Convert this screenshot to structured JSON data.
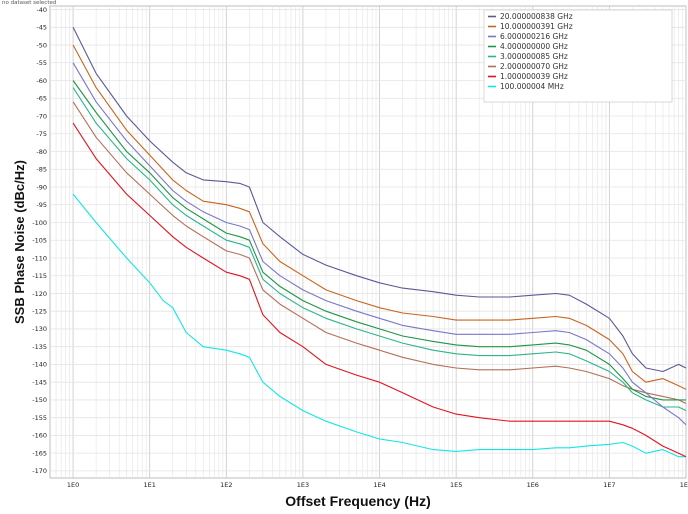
{
  "status_text": "no dataset selected",
  "colors": {
    "grid_major": "#c8c8c8",
    "grid_minor": "#e4e4e4",
    "frame": "#bcbcbc"
  },
  "chart_data": {
    "type": "line",
    "xlabel": "Offset Frequency (Hz)",
    "ylabel": "SSB Phase Noise (dBc/Hz)",
    "x_scale": "log",
    "xlim": [
      0.5,
      100000000
    ],
    "ylim": [
      -172,
      -39
    ],
    "x_ticks": [
      {
        "value": 1,
        "label": "1E0"
      },
      {
        "value": 10,
        "label": "1E1"
      },
      {
        "value": 100,
        "label": "1E2"
      },
      {
        "value": 1000,
        "label": "1E3"
      },
      {
        "value": 10000,
        "label": "1E4"
      },
      {
        "value": 100000,
        "label": "1E5"
      },
      {
        "value": 1000000,
        "label": "1E6"
      },
      {
        "value": 10000000,
        "label": "1E7"
      },
      {
        "value": 100000000,
        "label": "1E8"
      }
    ],
    "y_ticks": [
      -40,
      -45,
      -50,
      -55,
      -60,
      -65,
      -70,
      -75,
      -80,
      -85,
      -90,
      -95,
      -100,
      -105,
      -110,
      -115,
      -120,
      -125,
      -130,
      -135,
      -140,
      -145,
      -150,
      -155,
      -160,
      -165,
      -170
    ],
    "grid": true,
    "legend_position": "top-right",
    "series": [
      {
        "name": "20.000000838 GHz",
        "color": "#5a5a96",
        "x": [
          1,
          2,
          5,
          10,
          20,
          30,
          50,
          100,
          150,
          200,
          300,
          500,
          1000,
          2000,
          5000,
          10000,
          20000,
          50000,
          100000,
          200000,
          500000,
          1000000,
          2000000,
          3000000,
          5000000,
          10000000,
          15000000,
          20000000,
          30000000,
          50000000,
          80000000,
          100000000
        ],
        "y": [
          -45,
          -58,
          -70,
          -77,
          -83,
          -86,
          -88,
          -88.5,
          -89,
          -90,
          -100,
          -104,
          -109,
          -112,
          -115,
          -117,
          -118.5,
          -119.5,
          -120.5,
          -121,
          -121,
          -120.5,
          -120,
          -120.5,
          -123,
          -127,
          -132,
          -137,
          -141,
          -142,
          -140,
          -141
        ]
      },
      {
        "name": "10.000000391 GHz",
        "color": "#c8641e",
        "x": [
          1,
          2,
          5,
          10,
          20,
          30,
          50,
          100,
          150,
          200,
          300,
          500,
          1000,
          2000,
          5000,
          10000,
          20000,
          50000,
          100000,
          200000,
          500000,
          1000000,
          2000000,
          3000000,
          5000000,
          10000000,
          15000000,
          20000000,
          30000000,
          50000000,
          80000000,
          100000000
        ],
        "y": [
          -50,
          -62,
          -74,
          -81,
          -88,
          -91,
          -94,
          -95,
          -96,
          -97,
          -106,
          -111,
          -115,
          -119,
          -122,
          -124,
          -125.5,
          -126.5,
          -127.5,
          -127.5,
          -127.5,
          -127,
          -126.5,
          -127,
          -129,
          -133,
          -137,
          -142,
          -145,
          -144,
          -146,
          -147
        ]
      },
      {
        "name": "6.000000216 GHz",
        "color": "#7878c8",
        "x": [
          1,
          2,
          5,
          10,
          20,
          30,
          50,
          100,
          150,
          200,
          300,
          500,
          1000,
          2000,
          5000,
          10000,
          20000,
          50000,
          100000,
          200000,
          500000,
          1000000,
          2000000,
          3000000,
          5000000,
          10000000,
          15000000,
          20000000,
          30000000,
          50000000,
          80000000,
          100000000
        ],
        "y": [
          -55,
          -66,
          -77,
          -84,
          -91,
          -94,
          -97,
          -100,
          -101,
          -102,
          -111,
          -115,
          -119,
          -122,
          -125,
          -127,
          -129,
          -130.5,
          -131.5,
          -131.5,
          -131.5,
          -131,
          -130.5,
          -131,
          -133,
          -137,
          -141,
          -145,
          -148,
          -152,
          -155,
          -157
        ]
      },
      {
        "name": "4.000000000 GHz",
        "color": "#1e9646",
        "x": [
          1,
          2,
          5,
          10,
          20,
          30,
          50,
          100,
          150,
          200,
          300,
          500,
          1000,
          2000,
          5000,
          10000,
          20000,
          50000,
          100000,
          200000,
          500000,
          1000000,
          2000000,
          3000000,
          5000000,
          10000000,
          15000000,
          20000000,
          30000000,
          50000000,
          80000000,
          100000000
        ],
        "y": [
          -60,
          -69,
          -80,
          -86,
          -93,
          -96,
          -99,
          -103,
          -104,
          -105,
          -114,
          -118,
          -122,
          -125,
          -128,
          -130,
          -132,
          -133.5,
          -134.5,
          -135,
          -135,
          -134.5,
          -134,
          -134.5,
          -136,
          -140,
          -144,
          -147,
          -149,
          -150,
          -150,
          -150
        ]
      },
      {
        "name": "3.000000085 GHz",
        "color": "#2db48c",
        "x": [
          1,
          2,
          5,
          10,
          20,
          30,
          50,
          100,
          150,
          200,
          300,
          500,
          1000,
          2000,
          5000,
          10000,
          20000,
          50000,
          100000,
          200000,
          500000,
          1000000,
          2000000,
          3000000,
          5000000,
          10000000,
          15000000,
          20000000,
          30000000,
          50000000,
          80000000,
          100000000
        ],
        "y": [
          -62,
          -72,
          -82,
          -88,
          -95,
          -98,
          -101,
          -105,
          -106,
          -107,
          -116,
          -120,
          -124,
          -127,
          -130,
          -132,
          -134,
          -136,
          -137,
          -137.5,
          -137.5,
          -137,
          -136.5,
          -137,
          -139,
          -142,
          -145,
          -148,
          -150,
          -152,
          -152,
          -153
        ]
      },
      {
        "name": "2.000000070 GHz",
        "color": "#b46e5a",
        "x": [
          1,
          2,
          5,
          10,
          20,
          30,
          50,
          100,
          150,
          200,
          300,
          500,
          1000,
          2000,
          5000,
          10000,
          20000,
          50000,
          100000,
          200000,
          500000,
          1000000,
          2000000,
          3000000,
          5000000,
          10000000,
          15000000,
          20000000,
          30000000,
          50000000,
          80000000,
          100000000
        ],
        "y": [
          -66,
          -76,
          -86,
          -92,
          -98,
          -101,
          -104,
          -108,
          -109,
          -110,
          -119,
          -123,
          -127,
          -131,
          -134,
          -136,
          -138,
          -140,
          -141,
          -141.5,
          -141.5,
          -141,
          -140.5,
          -141,
          -142,
          -144,
          -146,
          -147,
          -148,
          -149,
          -150,
          -151
        ]
      },
      {
        "name": "1.000000039 GHz",
        "color": "#e1141e",
        "x": [
          1,
          2,
          5,
          10,
          20,
          30,
          50,
          100,
          150,
          200,
          300,
          500,
          1000,
          2000,
          5000,
          10000,
          20000,
          50000,
          100000,
          200000,
          500000,
          1000000,
          2000000,
          3000000,
          5000000,
          10000000,
          15000000,
          20000000,
          30000000,
          50000000,
          80000000,
          100000000
        ],
        "y": [
          -72,
          -82,
          -92,
          -98,
          -104,
          -107,
          -110,
          -114,
          -115,
          -116,
          -126,
          -131,
          -135,
          -140,
          -143,
          -145,
          -148,
          -152,
          -154,
          -155,
          -156,
          -156,
          -156,
          -156,
          -156,
          -156,
          -157,
          -158,
          -160,
          -163,
          -165,
          -166
        ]
      },
      {
        "name": "100.000004 MHz",
        "color": "#14e6e6",
        "x": [
          1,
          2,
          5,
          10,
          15,
          20,
          30,
          50,
          100,
          150,
          200,
          300,
          500,
          1000,
          2000,
          5000,
          10000,
          20000,
          50000,
          100000,
          200000,
          500000,
          1000000,
          2000000,
          3000000,
          5000000,
          10000000,
          15000000,
          20000000,
          30000000,
          50000000,
          80000000,
          100000000
        ],
        "y": [
          -92,
          -100,
          -110,
          -117,
          -122,
          -124,
          -131,
          -135,
          -136,
          -137,
          -138,
          -145,
          -149,
          -153,
          -156,
          -159,
          -161,
          -162,
          -164,
          -164.5,
          -164,
          -164,
          -164,
          -163.5,
          -163.5,
          -163,
          -162.5,
          -162,
          -163,
          -165,
          -164,
          -166,
          -166
        ]
      }
    ]
  }
}
